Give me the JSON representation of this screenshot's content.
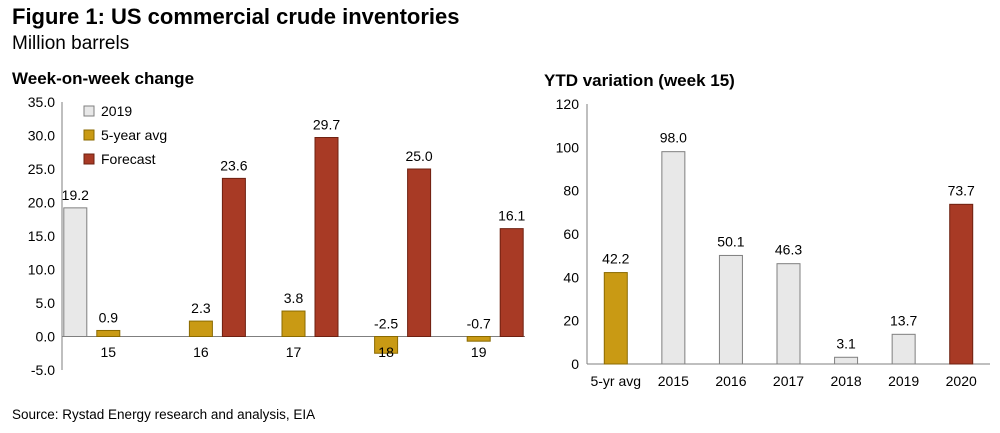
{
  "figure": {
    "title": "Figure 1: US commercial crude inventories",
    "subtitle": "Million barrels",
    "source": "Source: Rystad Energy research and analysis, EIA"
  },
  "colors": {
    "light": "#e8e8e8",
    "light_stroke": "#7f7f7f",
    "gold": "#c99a14",
    "gold_stroke": "#8a6a00",
    "red": "#a83a25",
    "red_stroke": "#6e2010"
  },
  "chart_data": [
    {
      "type": "bar",
      "title": "Week-on-week change",
      "categories": [
        "15",
        "16",
        "17",
        "18",
        "19"
      ],
      "series": [
        {
          "name": "2019",
          "color_key": "light",
          "values": [
            19.2,
            null,
            null,
            null,
            null
          ]
        },
        {
          "name": "5-year avg",
          "color_key": "gold",
          "values": [
            0.9,
            2.3,
            3.8,
            -2.5,
            -0.7
          ]
        },
        {
          "name": "Forecast",
          "color_key": "red",
          "values": [
            null,
            23.6,
            29.7,
            25.0,
            16.1
          ]
        }
      ],
      "data_labels": {
        "2019": [
          "19.2",
          null,
          null,
          null,
          null
        ],
        "5-year avg": [
          "0.9",
          "2.3",
          "3.8",
          "-2.5",
          "-0.7"
        ],
        "Forecast": [
          null,
          "23.6",
          "29.7",
          "25.0",
          "16.1"
        ]
      },
      "yticks": [
        "35.0",
        "30.0",
        "25.0",
        "20.0",
        "15.0",
        "10.0",
        "5.0",
        "0.0",
        "-5.0"
      ],
      "ylim": [
        -5,
        35
      ],
      "legend_position": "top-left",
      "grid": false
    },
    {
      "type": "bar",
      "title": "YTD variation (week 15)",
      "categories": [
        "5-yr avg",
        "2015",
        "2016",
        "2017",
        "2018",
        "2019",
        "2020"
      ],
      "values": [
        42.2,
        98.0,
        50.1,
        46.3,
        3.1,
        13.7,
        73.7
      ],
      "labels": [
        "42.2",
        "98.0",
        "50.1",
        "46.3",
        "3.1",
        "13.7",
        "73.7"
      ],
      "bar_color_keys": [
        "gold",
        "light",
        "light",
        "light",
        "light",
        "light",
        "red"
      ],
      "yticks": [
        "120",
        "100",
        "80",
        "60",
        "40",
        "20",
        "0"
      ],
      "ylim": [
        0,
        120
      ],
      "grid": false
    }
  ]
}
